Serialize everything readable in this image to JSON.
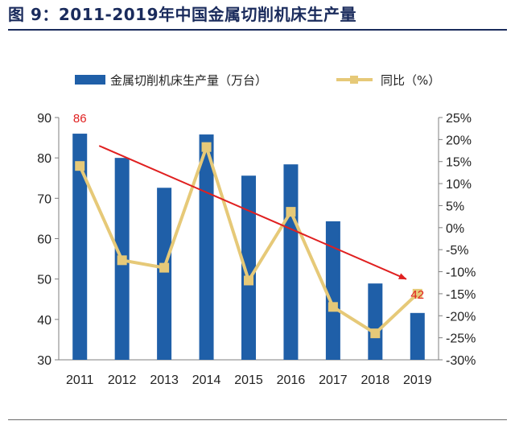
{
  "figure": {
    "title": "图 9：2011-2019年中国金属切削机床生产量"
  },
  "colors": {
    "bar": "#1f5fa8",
    "line": "#e6c978",
    "arrow": "#e02020",
    "annotation": "#e02020",
    "axis": "#7f7f7f",
    "title": "#1a2b5c"
  },
  "chart_data": {
    "type": "bar",
    "categories": [
      "2011",
      "2012",
      "2013",
      "2014",
      "2015",
      "2016",
      "2017",
      "2018",
      "2019"
    ],
    "series": [
      {
        "name": "金属切削机床生产量（万台）",
        "type": "bar",
        "axis": "left",
        "values": [
          86,
          80,
          72.6,
          85.8,
          75.6,
          78.4,
          64.3,
          48.9,
          41.6
        ]
      },
      {
        "name": "同比（%）",
        "type": "line",
        "axis": "right",
        "values": [
          14,
          -7.4,
          -9.1,
          18.3,
          -12,
          3.6,
          -18,
          -24,
          -15
        ]
      }
    ],
    "y_left": {
      "lim": [
        30,
        90
      ],
      "ticks": [
        "30",
        "40",
        "50",
        "60",
        "70",
        "80",
        "90"
      ]
    },
    "y_right": {
      "lim": [
        -30,
        25
      ],
      "ticks": [
        "-30%",
        "-25%",
        "-20%",
        "-15%",
        "-10%",
        "-5%",
        "0%",
        "5%",
        "10%",
        "15%",
        "20%",
        "25%"
      ]
    },
    "annotations": [
      {
        "text": "86",
        "category": "2011"
      },
      {
        "text": "42",
        "category": "2019"
      }
    ],
    "trend_arrow": {
      "from": {
        "category": "2011",
        "value": 83
      },
      "to": {
        "category": "2019",
        "value": 50
      }
    },
    "grid": false,
    "legend_position": "top"
  }
}
